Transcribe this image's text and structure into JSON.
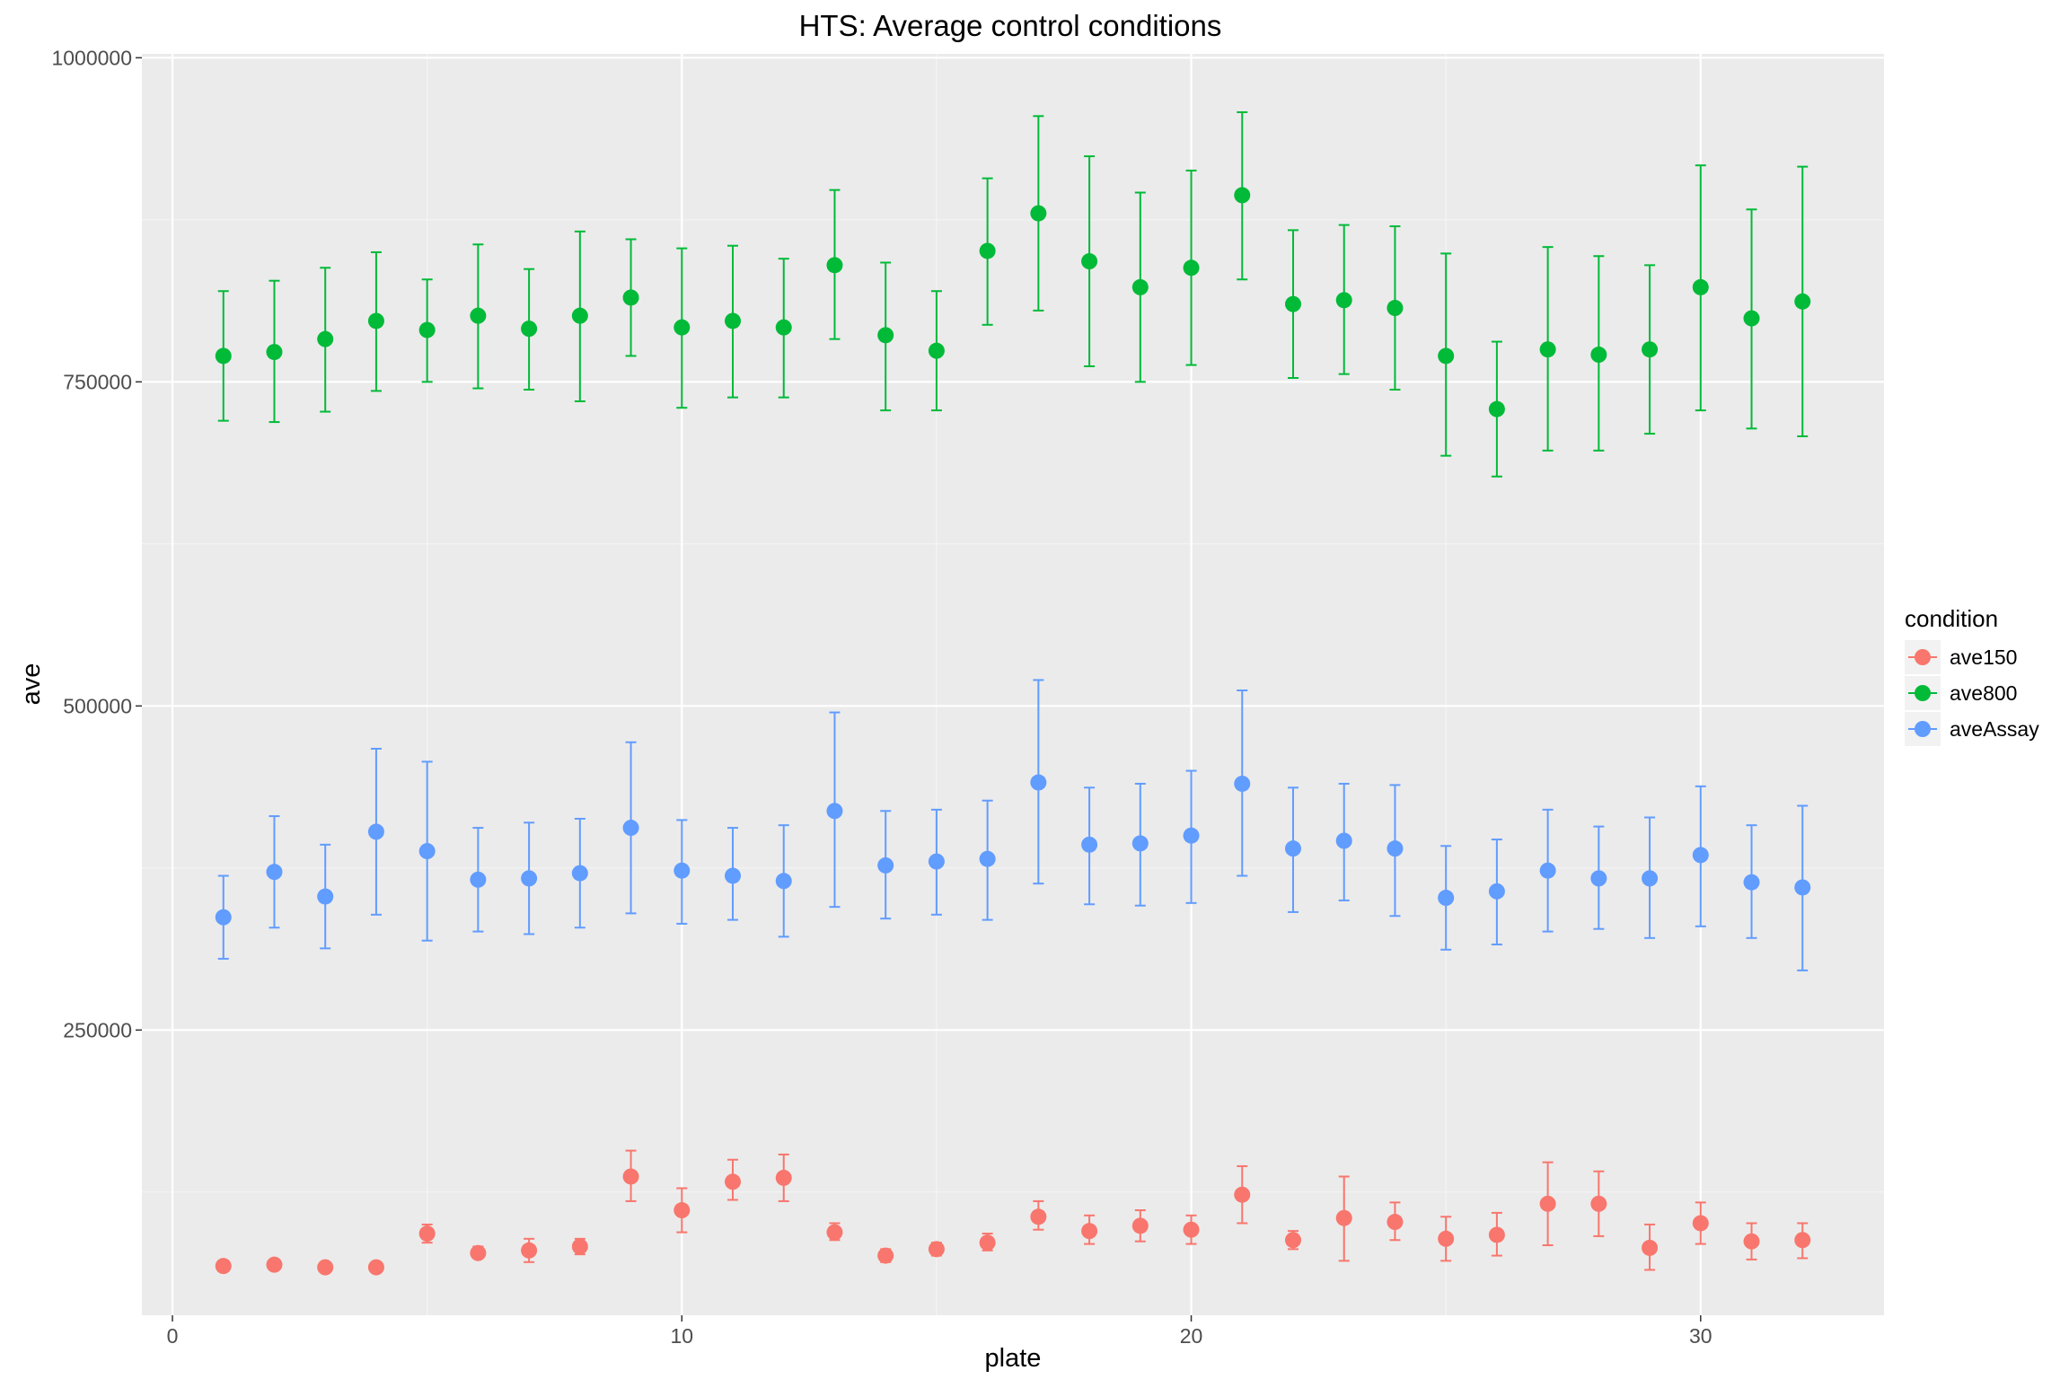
{
  "chart_data": {
    "type": "scatter",
    "title": "HTS: Average control conditions",
    "xlabel": "plate",
    "ylabel": "ave",
    "xlim": [
      -0.6,
      33.6
    ],
    "ylim": [
      30000,
      1003000
    ],
    "x_ticks": [
      0,
      10,
      20,
      30
    ],
    "x_tick_labels": [
      "0",
      "10",
      "20",
      "30"
    ],
    "y_ticks": [
      250000,
      500000,
      750000,
      1000000
    ],
    "y_tick_labels": [
      "250000",
      "500000",
      "750000",
      "1000000"
    ],
    "grid": true,
    "legend_title": "condition",
    "legend_position": "right",
    "x": [
      1,
      2,
      3,
      4,
      5,
      6,
      7,
      8,
      9,
      10,
      11,
      12,
      13,
      14,
      15,
      16,
      17,
      18,
      19,
      20,
      21,
      22,
      23,
      24,
      25,
      26,
      27,
      28,
      29,
      30,
      31,
      32
    ],
    "series": [
      {
        "name": "ave150",
        "color": "#F8766D",
        "values": [
          68000,
          69000,
          67000,
          67000,
          93000,
          78000,
          80000,
          83000,
          137000,
          111000,
          133000,
          136000,
          94000,
          76000,
          81000,
          86000,
          106000,
          95000,
          99000,
          96000,
          123000,
          88000,
          105000,
          102000,
          89000,
          92000,
          116000,
          116000,
          82000,
          101000,
          87000,
          88000
        ],
        "err_low": [
          68000,
          69000,
          67000,
          67000,
          86000,
          74000,
          71000,
          77000,
          118000,
          94000,
          119000,
          118000,
          88000,
          71000,
          76000,
          80000,
          96000,
          85000,
          87000,
          85000,
          101000,
          81000,
          72000,
          88000,
          72000,
          76000,
          84000,
          91000,
          65000,
          85000,
          73000,
          74000
        ],
        "err_high": [
          68000,
          69000,
          67000,
          67000,
          100000,
          83000,
          89000,
          89000,
          157000,
          128000,
          150000,
          154000,
          101000,
          81000,
          86000,
          93000,
          118000,
          107000,
          111000,
          107000,
          145000,
          95000,
          137000,
          117000,
          106000,
          109000,
          148000,
          141000,
          100000,
          117000,
          101000,
          101000
        ]
      },
      {
        "name": "ave800",
        "color": "#00BA38",
        "values": [
          770000,
          773000,
          783000,
          797000,
          790000,
          801000,
          791000,
          801000,
          815000,
          792000,
          797000,
          792000,
          840000,
          786000,
          774000,
          851000,
          880000,
          843000,
          823000,
          838000,
          894000,
          810000,
          813000,
          807000,
          770000,
          729000,
          775000,
          771000,
          775000,
          823000,
          799000,
          812000
        ],
        "err_low": [
          720000,
          719000,
          727000,
          743000,
          750000,
          745000,
          744000,
          735000,
          770000,
          730000,
          738000,
          738000,
          783000,
          728000,
          728000,
          794000,
          805000,
          762000,
          750000,
          763000,
          829000,
          753000,
          756000,
          744000,
          693000,
          677000,
          697000,
          697000,
          710000,
          728000,
          714000,
          708000
        ],
        "err_high": [
          820000,
          828000,
          838000,
          850000,
          829000,
          856000,
          837000,
          866000,
          860000,
          853000,
          855000,
          845000,
          898000,
          842000,
          820000,
          907000,
          955000,
          924000,
          896000,
          913000,
          958000,
          867000,
          871000,
          870000,
          849000,
          781000,
          854000,
          847000,
          840000,
          917000,
          883000,
          916000
        ]
      },
      {
        "name": "aveAssay",
        "color": "#619CFF",
        "values": [
          337000,
          372000,
          353000,
          403000,
          388000,
          366000,
          367000,
          371000,
          406000,
          373000,
          369000,
          365000,
          419000,
          377000,
          380000,
          382000,
          441000,
          393000,
          394000,
          400000,
          440000,
          390000,
          396000,
          390000,
          352000,
          357000,
          373000,
          367000,
          367000,
          385000,
          364000,
          360000
        ],
        "err_low": [
          305000,
          329000,
          313000,
          339000,
          319000,
          326000,
          324000,
          329000,
          340000,
          332000,
          335000,
          322000,
          345000,
          336000,
          339000,
          335000,
          363000,
          347000,
          346000,
          348000,
          369000,
          341000,
          350000,
          338000,
          312000,
          316000,
          326000,
          328000,
          321000,
          330000,
          321000,
          296000
        ],
        "err_high": [
          369000,
          415000,
          393000,
          467000,
          457000,
          406000,
          410000,
          413000,
          472000,
          412000,
          406000,
          408000,
          495000,
          419000,
          420000,
          427000,
          520000,
          437000,
          440000,
          450000,
          512000,
          437000,
          440000,
          439000,
          392000,
          397000,
          420000,
          407000,
          414000,
          438000,
          408000,
          423000
        ]
      }
    ]
  }
}
